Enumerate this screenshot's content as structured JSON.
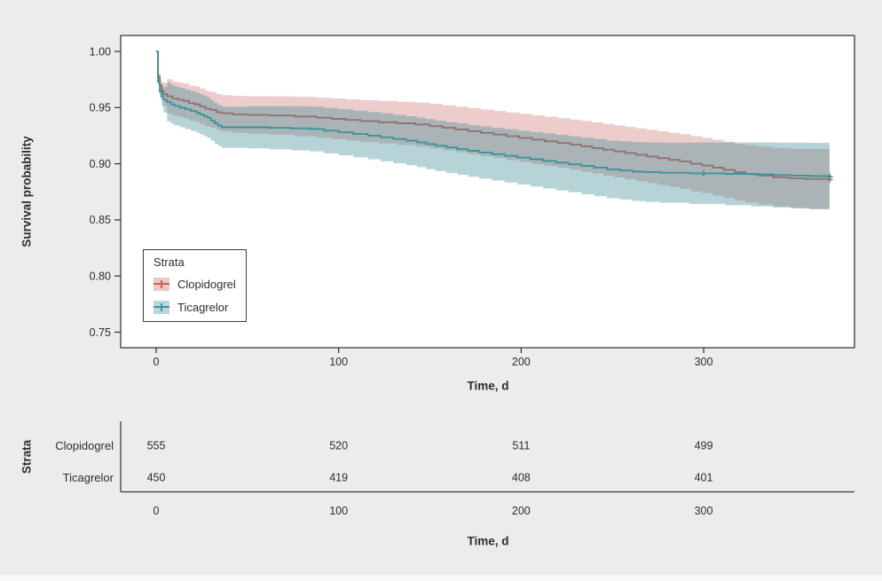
{
  "figure": {
    "background": "#ececec",
    "panel_background": "#ffffff",
    "axis_color": "#3a3a3a",
    "text_color": "#2d2d2d"
  },
  "chart_data": {
    "type": "line",
    "subtype": "kaplan-meier-survival-curve",
    "title": "",
    "xlabel": "Time, d",
    "ylabel": "Survival probability",
    "xlim": [
      -19,
      383
    ],
    "ylim": [
      0.737,
      1.014
    ],
    "xticks": [
      0,
      100,
      200,
      300
    ],
    "yticks": [
      1.0,
      0.95,
      0.9,
      0.85,
      0.8,
      0.75
    ],
    "grid": false,
    "legend": {
      "title": "Strata",
      "position": "inside-bottom-left",
      "entries": [
        {
          "label": "Clopidogrel",
          "line_color": "#c4655d",
          "fill_color": "#f0c6c1"
        },
        {
          "label": "Ticagrelor",
          "line_color": "#3e939c",
          "fill_color": "#b9d8dd"
        }
      ]
    },
    "series": [
      {
        "name": "Clopidogrel",
        "line_color": "#c4655d",
        "band_color": "rgba(197,100,92,0.32)",
        "ci_halfwidth_start": 0.015,
        "ci_halfwidth_end": 0.027,
        "censor_times": [
          369
        ],
        "curve": [
          [
            0,
            1.0
          ],
          [
            1,
            0.978
          ],
          [
            2,
            0.97
          ],
          [
            3,
            0.965
          ],
          [
            4,
            0.962
          ],
          [
            6,
            0.96
          ],
          [
            9,
            0.958
          ],
          [
            12,
            0.957
          ],
          [
            15,
            0.956
          ],
          [
            18,
            0.954
          ],
          [
            21,
            0.953
          ],
          [
            24,
            0.951
          ],
          [
            27,
            0.949
          ],
          [
            30,
            0.948
          ],
          [
            33,
            0.946
          ],
          [
            36,
            0.945
          ],
          [
            42,
            0.944
          ],
          [
            50,
            0.9435
          ],
          [
            62,
            0.943
          ],
          [
            76,
            0.942
          ],
          [
            88,
            0.941
          ],
          [
            96,
            0.94
          ],
          [
            104,
            0.939
          ],
          [
            112,
            0.938
          ],
          [
            122,
            0.937
          ],
          [
            132,
            0.936
          ],
          [
            142,
            0.935
          ],
          [
            150,
            0.9335
          ],
          [
            157,
            0.932
          ],
          [
            164,
            0.9305
          ],
          [
            171,
            0.929
          ],
          [
            178,
            0.9275
          ],
          [
            185,
            0.926
          ],
          [
            192,
            0.9245
          ],
          [
            199,
            0.923
          ],
          [
            206,
            0.9215
          ],
          [
            213,
            0.92
          ],
          [
            220,
            0.9185
          ],
          [
            227,
            0.917
          ],
          [
            233,
            0.9155
          ],
          [
            239,
            0.914
          ],
          [
            245,
            0.9125
          ],
          [
            251,
            0.911
          ],
          [
            257,
            0.9095
          ],
          [
            263,
            0.908
          ],
          [
            269,
            0.9065
          ],
          [
            275,
            0.905
          ],
          [
            281,
            0.9035
          ],
          [
            287,
            0.902
          ],
          [
            293,
            0.9
          ],
          [
            299,
            0.8985
          ],
          [
            305,
            0.8965
          ],
          [
            311,
            0.8945
          ],
          [
            317,
            0.8925
          ],
          [
            323,
            0.891
          ],
          [
            330,
            0.8895
          ],
          [
            338,
            0.888
          ],
          [
            347,
            0.887
          ],
          [
            356,
            0.8865
          ],
          [
            369,
            0.886
          ]
        ]
      },
      {
        "name": "Ticagrelor",
        "line_color": "#3e939c",
        "band_color": "rgba(62,140,150,0.38)",
        "ci_halfwidth_start": 0.017,
        "ci_halfwidth_end": 0.03,
        "censor_times": [
          300,
          369
        ],
        "curve": [
          [
            0,
            1.0
          ],
          [
            1,
            0.973
          ],
          [
            2,
            0.964
          ],
          [
            3,
            0.96
          ],
          [
            4,
            0.957
          ],
          [
            6,
            0.955
          ],
          [
            8,
            0.953
          ],
          [
            10,
            0.9515
          ],
          [
            13,
            0.95
          ],
          [
            16,
            0.9485
          ],
          [
            19,
            0.947
          ],
          [
            22,
            0.9455
          ],
          [
            24,
            0.944
          ],
          [
            26,
            0.9425
          ],
          [
            28,
            0.941
          ],
          [
            30,
            0.9385
          ],
          [
            32,
            0.936
          ],
          [
            34,
            0.934
          ],
          [
            36,
            0.9325
          ],
          [
            50,
            0.9325
          ],
          [
            62,
            0.932
          ],
          [
            74,
            0.9315
          ],
          [
            84,
            0.931
          ],
          [
            92,
            0.9295
          ],
          [
            100,
            0.928
          ],
          [
            108,
            0.9265
          ],
          [
            116,
            0.925
          ],
          [
            123,
            0.9235
          ],
          [
            130,
            0.922
          ],
          [
            137,
            0.9205
          ],
          [
            143,
            0.919
          ],
          [
            148,
            0.9175
          ],
          [
            153,
            0.916
          ],
          [
            159,
            0.9145
          ],
          [
            165,
            0.913
          ],
          [
            171,
            0.9115
          ],
          [
            177,
            0.91
          ],
          [
            184,
            0.9085
          ],
          [
            191,
            0.907
          ],
          [
            198,
            0.9055
          ],
          [
            205,
            0.904
          ],
          [
            212,
            0.9025
          ],
          [
            219,
            0.901
          ],
          [
            226,
            0.8995
          ],
          [
            233,
            0.898
          ],
          [
            240,
            0.8965
          ],
          [
            247,
            0.895
          ],
          [
            254,
            0.894
          ],
          [
            261,
            0.893
          ],
          [
            268,
            0.8925
          ],
          [
            276,
            0.892
          ],
          [
            292,
            0.8915
          ],
          [
            312,
            0.891
          ],
          [
            326,
            0.8905
          ],
          [
            338,
            0.89
          ],
          [
            348,
            0.8895
          ],
          [
            358,
            0.889
          ],
          [
            369,
            0.8885
          ]
        ]
      }
    ],
    "risk_table": {
      "row_group_label": "Strata",
      "xlabel": "Time, d",
      "times": [
        0,
        100,
        200,
        300
      ],
      "rows": [
        {
          "name": "Clopidogrel",
          "counts": [
            555,
            520,
            511,
            499
          ]
        },
        {
          "name": "Ticagrelor",
          "counts": [
            450,
            419,
            408,
            401
          ]
        }
      ]
    }
  }
}
